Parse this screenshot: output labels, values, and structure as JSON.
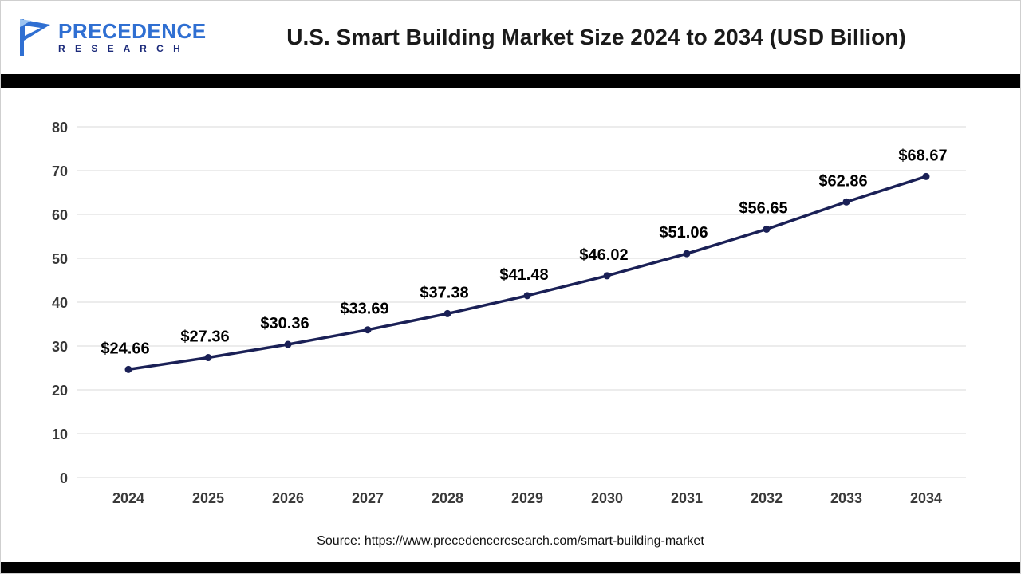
{
  "header": {
    "logo": {
      "line1": "PRECEDENCE",
      "line2": "R E S E A R C H"
    }
  },
  "chart_data": {
    "type": "line",
    "title": "U.S. Smart Building Market Size 2024 to 2034 (USD Billion)",
    "categories": [
      "2024",
      "2025",
      "2026",
      "2027",
      "2028",
      "2029",
      "2030",
      "2031",
      "2032",
      "2033",
      "2034"
    ],
    "values": [
      24.66,
      27.36,
      30.36,
      33.69,
      37.38,
      41.48,
      46.02,
      51.06,
      56.65,
      62.86,
      68.67
    ],
    "data_labels": [
      "$24.66",
      "$27.36",
      "$30.36",
      "$33.69",
      "$37.38",
      "$41.48",
      "$46.02",
      "$51.06",
      "$56.65",
      "$62.86",
      "$68.67"
    ],
    "unit": "USD Billion",
    "xlabel": "",
    "ylabel": "",
    "ylim": [
      0,
      80
    ],
    "ytick_step": 10,
    "grid": true,
    "legend": "none",
    "line_color": "#1a2056",
    "marker_color": "#1a2056",
    "gridline_color": "#d9d9d9",
    "label_color": "#000000",
    "axis_label_color": "#3a3a3a"
  },
  "footer": {
    "source": "Source: https://www.precedenceresearch.com/smart-building-market"
  },
  "colors": {
    "logo_blue": "#2f6fd2",
    "logo_light_blue": "#9cc3f0",
    "logo_navy": "#1b2a7a",
    "bar_black": "#000000"
  }
}
